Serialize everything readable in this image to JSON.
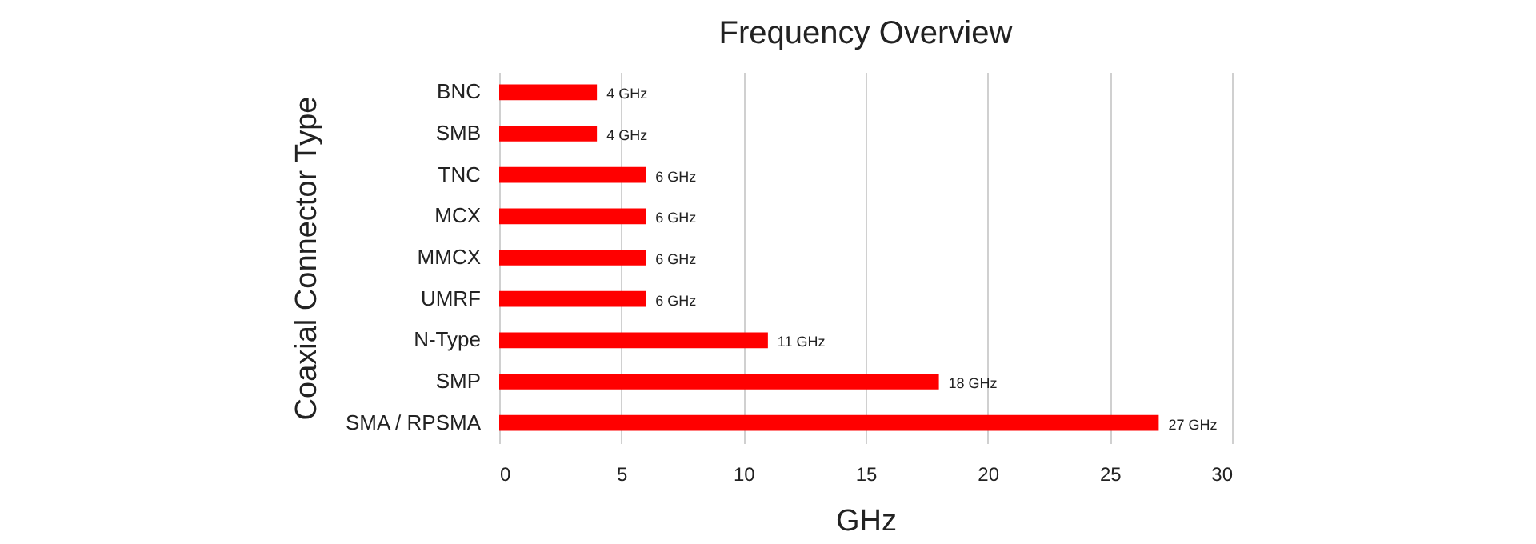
{
  "chart_data": {
    "type": "bar",
    "title": "Frequency Overview",
    "xlabel": "GHz",
    "ylabel": "Coaxial Connector Type",
    "orientation": "horizontal",
    "categories": [
      "BNC",
      "SMB",
      "TNC",
      "MCX",
      "MMCX",
      "UMRF",
      "N-Type",
      "SMP",
      "SMA / RPSMA"
    ],
    "values": [
      4,
      4,
      6,
      6,
      6,
      6,
      11,
      18,
      27
    ],
    "value_labels": [
      "4 GHz",
      "4 GHz",
      "6 GHz",
      "6 GHz",
      "6 GHz",
      "6 GHz",
      "11 GHz",
      "18 GHz",
      "27 GHz"
    ],
    "color": "#ff0000",
    "xlim": [
      0,
      30
    ],
    "xticks": [
      0,
      5,
      10,
      15,
      20,
      25,
      30
    ],
    "grid": "x"
  }
}
